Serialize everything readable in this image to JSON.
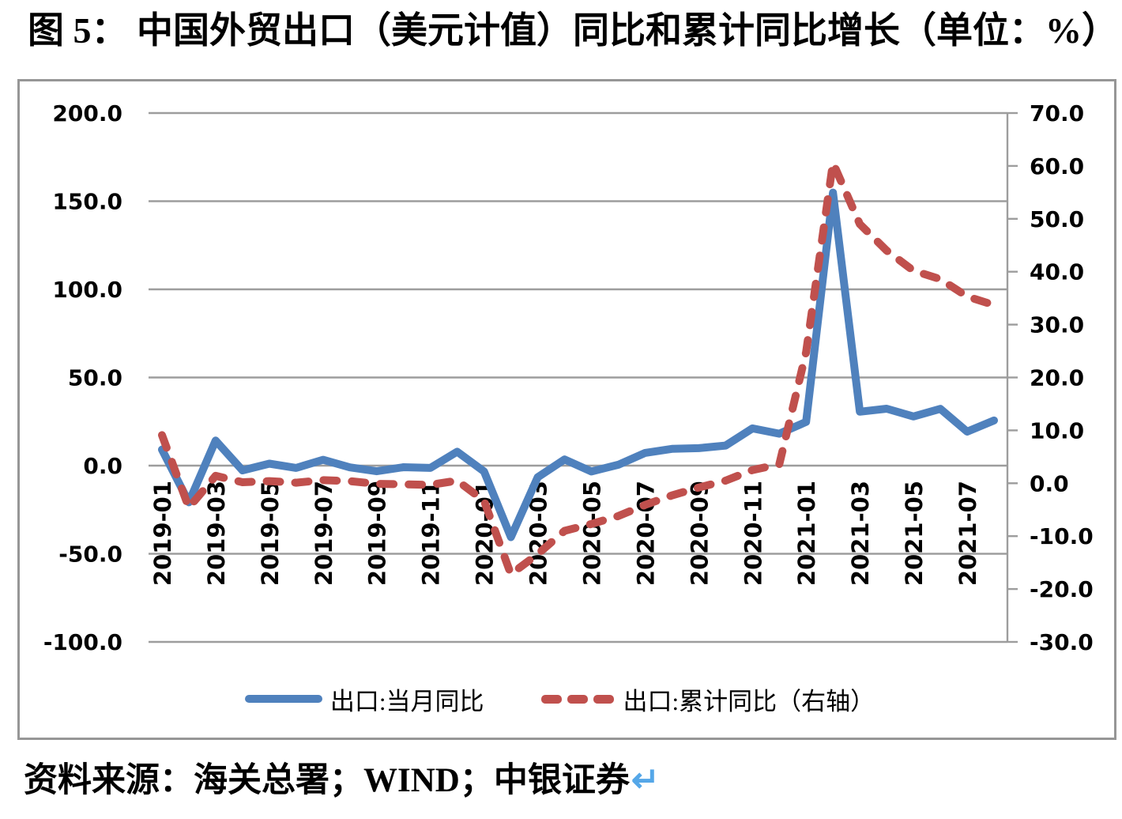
{
  "title": "图 5： 中国外贸出口（美元计值）同比和累计同比增长（单位：%）",
  "source_note": "资料来源：海关总署；WIND；中银证券",
  "return_mark": "↵",
  "colors": {
    "series_monthly": "#4f81bd",
    "series_cumulative": "#c0504d",
    "gridline": "#9d9d9d",
    "axis_line": "#9d9d9d",
    "box_border": "#969696",
    "return_mark": "#55a7e8",
    "label_text": "#000000"
  },
  "chart_data": {
    "type": "line",
    "title": "图 5： 中国外贸出口（美元计值）同比和累计同比增长（单位：%）",
    "x": [
      "2019-01",
      "2019-02",
      "2019-03",
      "2019-04",
      "2019-05",
      "2019-06",
      "2019-07",
      "2019-08",
      "2019-09",
      "2019-10",
      "2019-11",
      "2019-12",
      "2020-01",
      "2020-02",
      "2020-03",
      "2020-04",
      "2020-05",
      "2020-06",
      "2020-07",
      "2020-08",
      "2020-09",
      "2020-10",
      "2020-11",
      "2020-12",
      "2021-01",
      "2021-02",
      "2021-03",
      "2021-04",
      "2021-05",
      "2021-06",
      "2021-07",
      "2021-08"
    ],
    "x_tick_labels": [
      "2019-01",
      "2019-03",
      "2019-05",
      "2019-07",
      "2019-09",
      "2019-11",
      "2020-01",
      "2020-03",
      "2020-05",
      "2020-07",
      "2020-09",
      "2020-11",
      "2021-01",
      "2021-03",
      "2021-05",
      "2021-07"
    ],
    "series": [
      {
        "name": "出口:当月同比",
        "axis": "left",
        "style": "solid",
        "color": "#4f81bd",
        "values": [
          9.1,
          -20.8,
          14.2,
          -2.7,
          1.1,
          -1.3,
          3.3,
          -1.0,
          -3.2,
          -0.9,
          -1.3,
          7.9,
          -3.3,
          -40.6,
          -6.6,
          3.5,
          -3.3,
          0.5,
          7.2,
          9.5,
          9.9,
          11.4,
          21.1,
          18.1,
          24.8,
          154.9,
          30.6,
          32.3,
          27.9,
          32.2,
          19.3,
          25.6
        ]
      },
      {
        "name": "出口:累计同比（右轴）",
        "axis": "right",
        "style": "dashed",
        "color": "#c0504d",
        "values": [
          9.1,
          -4.6,
          1.4,
          0.2,
          0.4,
          0.1,
          0.6,
          0.4,
          -0.1,
          -0.2,
          -0.3,
          0.5,
          -3.3,
          -17.2,
          -13.4,
          -9.0,
          -7.7,
          -6.2,
          -4.1,
          -2.3,
          -0.8,
          0.5,
          2.5,
          3.6,
          24.8,
          60.6,
          49.0,
          44.0,
          40.2,
          38.6,
          35.3,
          33.7
        ]
      }
    ],
    "left_axis": {
      "min": -100,
      "max": 200,
      "tick_labels": [
        "200.0",
        "150.0",
        "100.0",
        "50.0",
        "0.0",
        "-50.0",
        "-100.0"
      ]
    },
    "right_axis": {
      "min": -30,
      "max": 70,
      "tick_labels": [
        "70.0",
        "60.0",
        "50.0",
        "40.0",
        "30.0",
        "20.0",
        "10.0",
        "0.0",
        "-10.0",
        "-20.0",
        "-30.0"
      ]
    },
    "grid": true,
    "legend_position": "bottom"
  }
}
